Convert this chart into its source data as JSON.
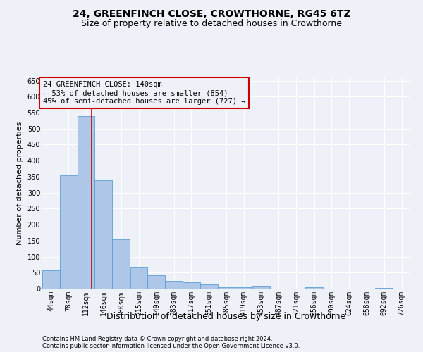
{
  "title": "24, GREENFINCH CLOSE, CROWTHORNE, RG45 6TZ",
  "subtitle": "Size of property relative to detached houses in Crowthorne",
  "xlabel": "Distribution of detached houses by size in Crowthorne",
  "ylabel": "Number of detached properties",
  "footer_line1": "Contains HM Land Registry data © Crown copyright and database right 2024.",
  "footer_line2": "Contains public sector information licensed under the Open Government Licence v3.0.",
  "bar_edges": [
    44,
    78,
    112,
    146,
    180,
    215,
    249,
    283,
    317,
    351,
    385,
    419,
    453,
    487,
    521,
    556,
    590,
    624,
    658,
    692,
    726
  ],
  "bar_heights": [
    58,
    355,
    538,
    338,
    155,
    68,
    42,
    25,
    19,
    14,
    5,
    5,
    8,
    0,
    0,
    5,
    0,
    0,
    0,
    3
  ],
  "bar_color": "#aec6e8",
  "bar_edge_color": "#5a9fd4",
  "property_size": 140,
  "property_line_color": "#cc0000",
  "annotation_line1": "24 GREENFINCH CLOSE: 140sqm",
  "annotation_line2": "← 53% of detached houses are smaller (854)",
  "annotation_line3": "45% of semi-detached houses are larger (727) →",
  "annotation_box_color": "#cc0000",
  "ylim": [
    0,
    660
  ],
  "yticks": [
    0,
    50,
    100,
    150,
    200,
    250,
    300,
    350,
    400,
    450,
    500,
    550,
    600,
    650
  ],
  "background_color": "#eef2f8",
  "grid_color": "#ffffff",
  "title_fontsize": 10,
  "subtitle_fontsize": 9,
  "xlabel_fontsize": 9,
  "ylabel_fontsize": 8,
  "tick_fontsize": 7,
  "annotation_fontsize": 7.5,
  "footer_fontsize": 6
}
